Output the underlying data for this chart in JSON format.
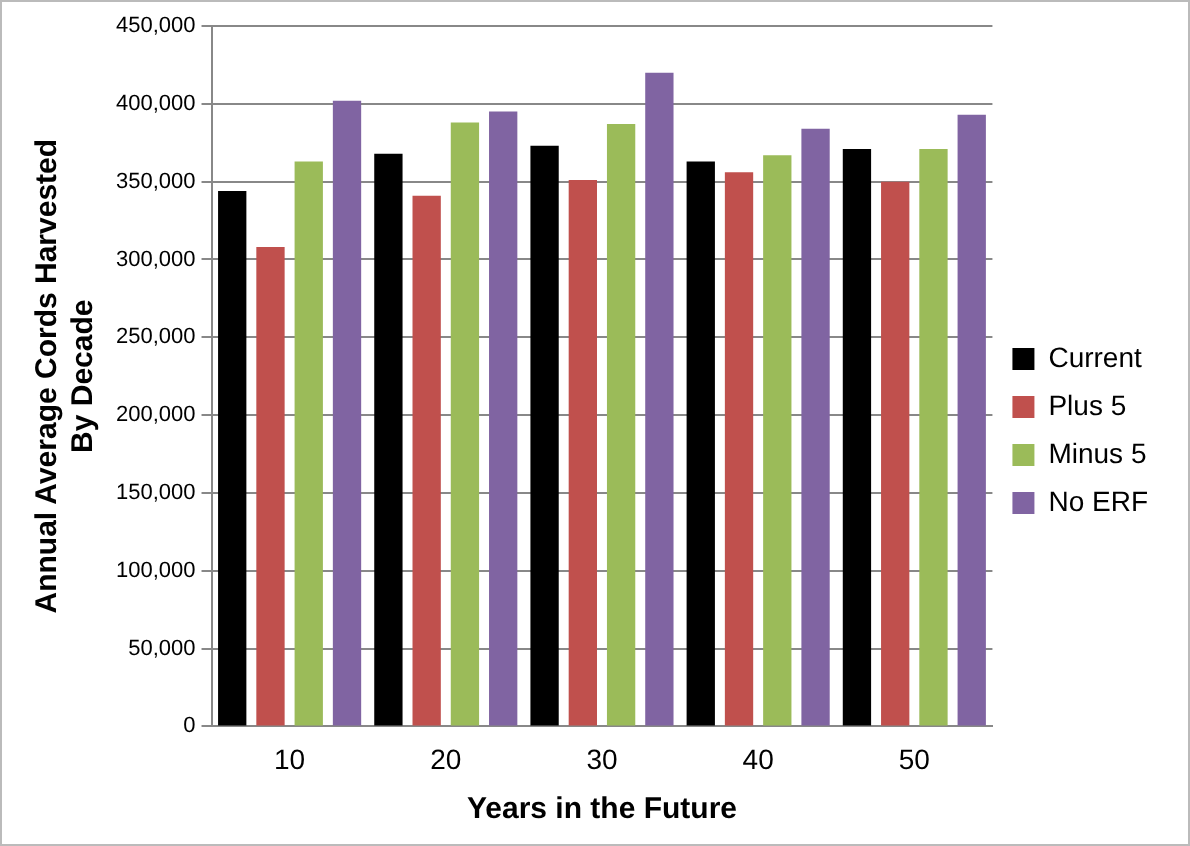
{
  "chart_data": {
    "type": "bar",
    "xlabel": "Years in the Future",
    "ylabel": "Annual Average Cords Harvested By Decade",
    "categories": [
      "10",
      "20",
      "30",
      "40",
      "50"
    ],
    "series": [
      {
        "name": "Current",
        "color": "#000000",
        "values": [
          344000,
          368000,
          373000,
          363000,
          371000
        ]
      },
      {
        "name": "Plus 5",
        "color": "#c0504d",
        "values": [
          308000,
          341000,
          351000,
          356000,
          350000
        ]
      },
      {
        "name": "Minus 5",
        "color": "#9bbb59",
        "values": [
          363000,
          388000,
          387000,
          367000,
          371000
        ]
      },
      {
        "name": "No ERF",
        "color": "#8064a2",
        "values": [
          402000,
          395000,
          420000,
          384000,
          393000
        ]
      }
    ],
    "ylim": [
      0,
      450000
    ],
    "yticks": [
      0,
      {
        "value": 50000,
        "label": "50,000"
      },
      {
        "value": 100000,
        "label": "100,000"
      },
      {
        "value": 150000,
        "label": "150,000"
      },
      {
        "value": 200000,
        "label": "200,000"
      },
      {
        "value": 250000,
        "label": "250,000"
      },
      {
        "value": 300000,
        "label": "300,000"
      },
      {
        "value": 350000,
        "label": "350,000"
      },
      {
        "value": 400000,
        "label": "400,000"
      },
      {
        "value": 450000,
        "label": "450,000"
      }
    ],
    "grid": "y",
    "legend": "right"
  }
}
